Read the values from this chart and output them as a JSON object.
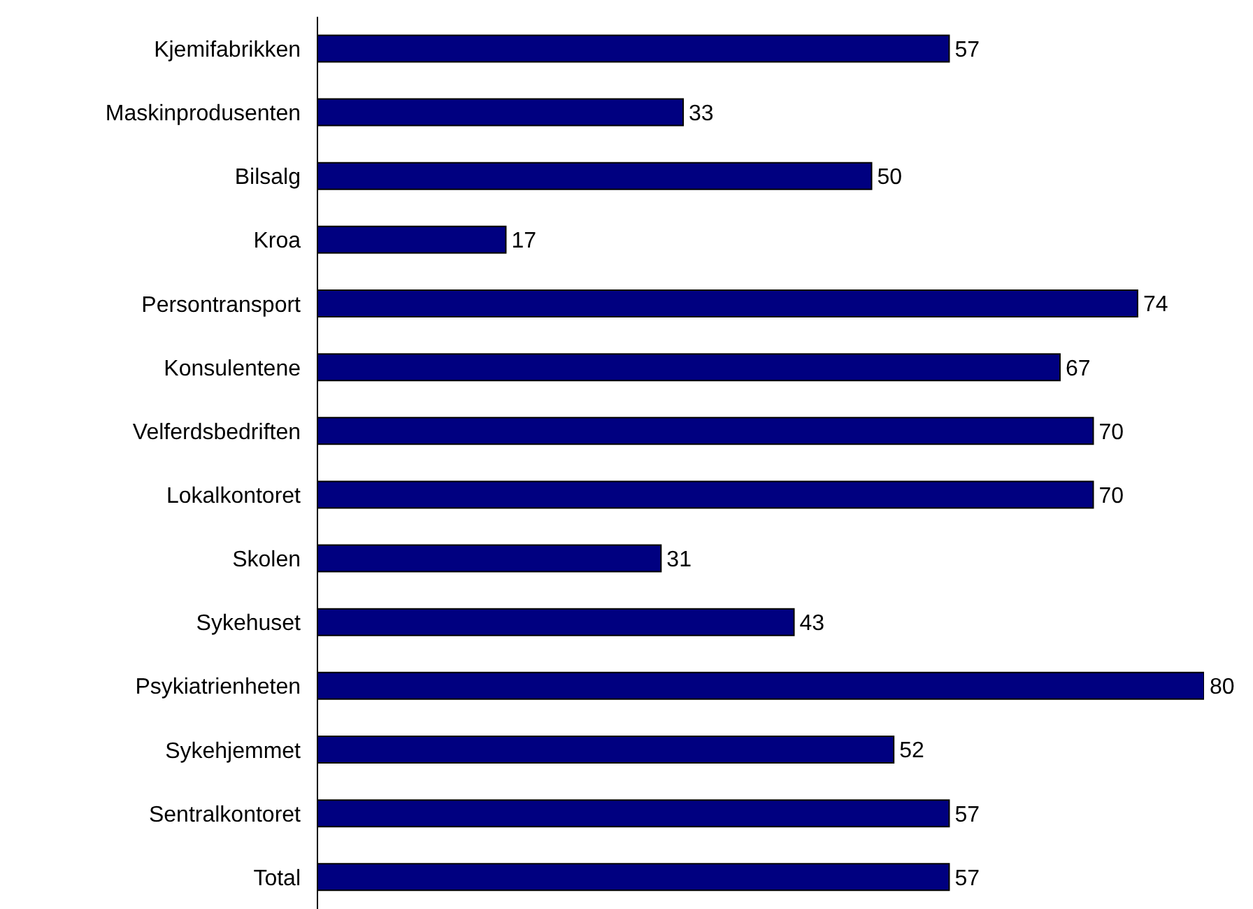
{
  "chart_data": {
    "type": "bar",
    "orientation": "horizontal",
    "categories": [
      "Kjemifabrikken",
      "Maskinprodusenten",
      "Bilsalg",
      "Kroa",
      "Persontransport",
      "Konsulentene",
      "Velferdsbedriften",
      "Lokalkontoret",
      "Skolen",
      "Sykehuset",
      "Psykiatrienheten",
      "Sykehjemmet",
      "Sentralkontoret",
      "Total"
    ],
    "values": [
      57,
      33,
      50,
      17,
      74,
      67,
      70,
      70,
      31,
      43,
      80,
      52,
      57,
      57
    ],
    "color": "#000080",
    "data_labels": true,
    "tick_labels": "y"
  }
}
